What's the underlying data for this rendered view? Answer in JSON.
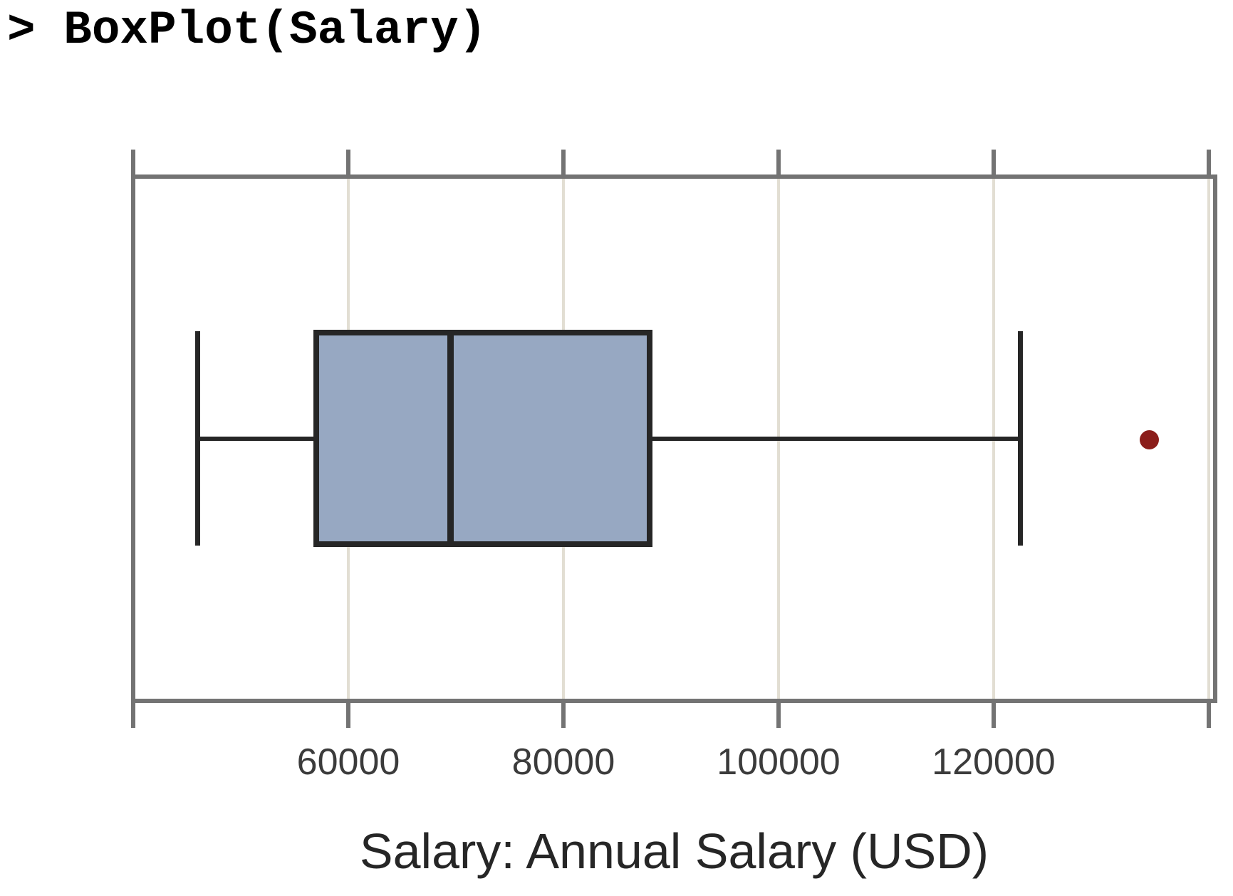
{
  "console": {
    "command": "> BoxPlot(Salary)"
  },
  "chart_data": {
    "type": "boxplot",
    "orientation": "horizontal",
    "variable": "Salary",
    "xlabel": "Salary: Annual Salary (USD)",
    "stats": {
      "whisker_low": 46000,
      "q1": 57000,
      "median": 69500,
      "q3": 88000,
      "whisker_high": 122500
    },
    "outliers": [
      134500
    ],
    "xlim": [
      40000,
      140600
    ],
    "grid": true,
    "ticks": [
      {
        "value": 40000,
        "label": ""
      },
      {
        "value": 60000,
        "label": "60000"
      },
      {
        "value": 80000,
        "label": "80000"
      },
      {
        "value": 100000,
        "label": "100000"
      },
      {
        "value": 120000,
        "label": "120000"
      },
      {
        "value": 140000,
        "label": ""
      }
    ],
    "colors": {
      "box_fill": "#97A8C2",
      "box_stroke": "#262626",
      "whisker": "#262626",
      "outlier": "#8B1D1A",
      "frame": "#737373",
      "gridline": "#E2DED3",
      "tick_label": "#3B3B3B",
      "axis_title": "#262626",
      "console_text": "#000000"
    }
  }
}
